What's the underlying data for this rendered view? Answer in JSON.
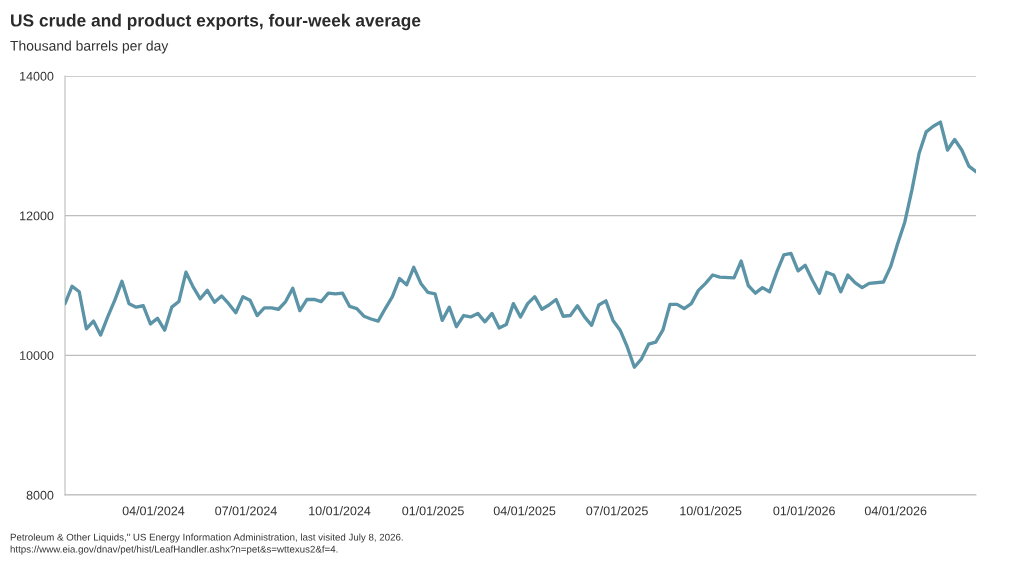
{
  "chart_data": {
    "type": "line",
    "title": "US crude and product exports, four-week average",
    "subtitle": "Thousand barrels per day",
    "x": [
      "2024-01-05",
      "2024-01-12",
      "2024-01-19",
      "2024-01-26",
      "2024-02-02",
      "2024-02-09",
      "2024-02-16",
      "2024-02-23",
      "2024-03-01",
      "2024-03-08",
      "2024-03-15",
      "2024-03-22",
      "2024-03-29",
      "2024-04-05",
      "2024-04-12",
      "2024-04-19",
      "2024-04-26",
      "2024-05-03",
      "2024-05-10",
      "2024-05-17",
      "2024-05-24",
      "2024-05-31",
      "2024-06-07",
      "2024-06-14",
      "2024-06-21",
      "2024-06-28",
      "2024-07-05",
      "2024-07-12",
      "2024-07-19",
      "2024-07-26",
      "2024-08-02",
      "2024-08-09",
      "2024-08-16",
      "2024-08-23",
      "2024-08-30",
      "2024-09-06",
      "2024-09-13",
      "2024-09-20",
      "2024-09-27",
      "2024-10-04",
      "2024-10-11",
      "2024-10-18",
      "2024-10-25",
      "2024-11-01",
      "2024-11-08",
      "2024-11-15",
      "2024-11-22",
      "2024-11-29",
      "2024-12-06",
      "2024-12-13",
      "2024-12-20",
      "2024-12-27",
      "2025-01-03",
      "2025-01-10",
      "2025-01-17",
      "2025-01-24",
      "2025-01-31",
      "2025-02-07",
      "2025-02-14",
      "2025-02-21",
      "2025-02-28",
      "2025-03-07",
      "2025-03-14",
      "2025-03-21",
      "2025-03-28",
      "2025-04-04",
      "2025-04-11",
      "2025-04-18",
      "2025-04-25",
      "2025-05-02",
      "2025-05-09",
      "2025-05-16",
      "2025-05-23",
      "2025-05-30",
      "2025-06-06",
      "2025-06-13",
      "2025-06-20",
      "2025-06-27",
      "2025-07-04",
      "2025-07-11",
      "2025-07-18",
      "2025-07-25",
      "2025-08-01",
      "2025-08-08",
      "2025-08-15",
      "2025-08-22",
      "2025-08-29",
      "2025-09-05",
      "2025-09-12",
      "2025-09-19",
      "2025-09-26",
      "2025-10-03",
      "2025-10-10",
      "2025-10-24",
      "2025-10-31",
      "2025-11-07",
      "2025-11-14",
      "2025-11-21",
      "2025-11-28",
      "2025-12-05",
      "2025-12-12",
      "2025-12-19",
      "2025-12-26",
      "2026-01-02",
      "2026-01-09",
      "2026-01-16",
      "2026-01-23",
      "2026-01-30",
      "2026-02-06",
      "2026-02-13",
      "2026-02-20",
      "2026-02-27",
      "2026-03-06",
      "2026-03-20",
      "2026-03-27",
      "2026-04-03",
      "2026-04-10",
      "2026-04-17",
      "2026-04-24",
      "2026-05-01",
      "2026-05-08",
      "2026-05-15",
      "2026-05-22",
      "2026-05-29",
      "2026-06-05",
      "2026-06-12",
      "2026-06-19"
    ],
    "series": [
      {
        "color": "#5b93a7",
        "values": [
          10740,
          10990,
          10910,
          10380,
          10490,
          10290,
          10550,
          10790,
          11060,
          10740,
          10690,
          10710,
          10450,
          10530,
          10360,
          10690,
          10770,
          11190,
          10980,
          10810,
          10930,
          10760,
          10850,
          10740,
          10610,
          10840,
          10790,
          10570,
          10680,
          10680,
          10660,
          10770,
          10960,
          10640,
          10800,
          10800,
          10770,
          10890,
          10880,
          10890,
          10700,
          10670,
          10560,
          10520,
          10490,
          10670,
          10840,
          11100,
          11010,
          11260,
          11030,
          10900,
          10880,
          10500,
          10690,
          10410,
          10570,
          10550,
          10600,
          10480,
          10600,
          10390,
          10440,
          10740,
          10550,
          10740,
          10840,
          10660,
          10720,
          10800,
          10560,
          10570,
          10710,
          10550,
          10430,
          10720,
          10780,
          10500,
          10360,
          10120,
          9830,
          9950,
          10160,
          10190,
          10360,
          10730,
          10730,
          10670,
          10740,
          10930,
          11030,
          11150,
          11120,
          11110,
          11350,
          11000,
          10890,
          10970,
          10910,
          11190,
          11440,
          11460,
          11210,
          11290,
          11080,
          10890,
          11190,
          11150,
          10910,
          11150,
          11040,
          10970,
          11030,
          11050,
          11270,
          11600,
          11910,
          12370,
          12890,
          13200,
          13280,
          13340,
          12940,
          13090,
          12940,
          12710,
          12630
        ]
      }
    ],
    "xlim": [
      "2024-01-05",
      "2026-06-19"
    ],
    "xticks": [
      {
        "value": "2024-04-01",
        "label": "04/01/2024"
      },
      {
        "value": "2024-07-01",
        "label": "07/01/2024"
      },
      {
        "value": "2024-10-01",
        "label": "10/01/2024"
      },
      {
        "value": "2025-01-01",
        "label": "01/01/2025"
      },
      {
        "value": "2025-04-01",
        "label": "04/01/2025"
      },
      {
        "value": "2025-07-01",
        "label": "07/01/2025"
      },
      {
        "value": "2025-10-01",
        "label": "10/01/2025"
      },
      {
        "value": "2026-01-01",
        "label": "01/01/2026"
      },
      {
        "value": "2026-04-01",
        "label": "04/01/2026"
      }
    ],
    "ylim": [
      8000,
      14000
    ],
    "yticks": [
      8000,
      10000,
      12000,
      14000
    ],
    "grid": "y",
    "marker": "none",
    "line_style": "solid",
    "annotations": [
      "Petroleum & Other Liquids,\" US Energy Information Administration, last visited July 8, 2026.",
      "https://www.eia.gov/dnav/pet/hist/LeafHandler.ashx?n=pet&s=wttexus2&f=4."
    ]
  }
}
